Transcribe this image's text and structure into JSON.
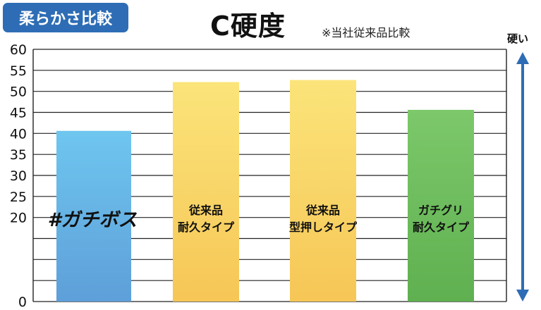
{
  "badge": "柔らかさ比較",
  "title": "C硬度",
  "note": "※当社従来品比較",
  "arrow_label": "硬い",
  "colors": {
    "badge_bg": "#2e6db5",
    "arrow": "#2e6db5",
    "grid": "#222222"
  },
  "chart_data": {
    "type": "bar",
    "title": "C硬度",
    "xlabel": "",
    "ylabel": "",
    "ylim": [
      0,
      60
    ],
    "y_ticks": [
      "0",
      "20",
      "25",
      "30",
      "35",
      "40",
      "45",
      "50",
      "55",
      "60"
    ],
    "grid": true,
    "categories": [
      "#ガチボス",
      "従来品\n耐久タイプ",
      "従来品\n型押しタイプ",
      "ガチグリ\n耐久タイプ"
    ],
    "values": [
      40.6,
      52.2,
      52.7,
      45.6
    ],
    "bar_colors": [
      [
        "#6ec6ef",
        "#5e9fd9"
      ],
      [
        "#fbe47a",
        "#f6c656"
      ],
      [
        "#fbe47a",
        "#f6c656"
      ],
      [
        "#7cc86a",
        "#5fb050"
      ]
    ]
  }
}
